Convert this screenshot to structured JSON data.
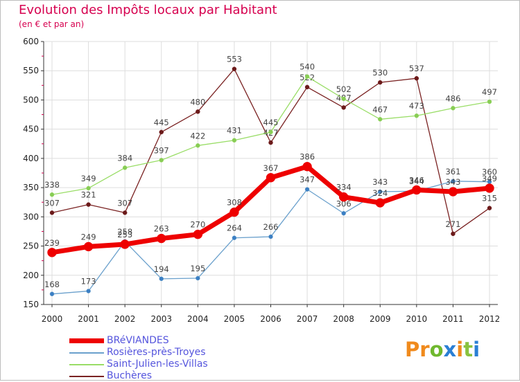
{
  "title": "Evolution des Impôts locaux par Habitant",
  "subtitle": "(en € et par an)",
  "brand": {
    "text": "Proxiti",
    "letter_colors": [
      "#f08a1c",
      "#f08a1c",
      "#6fb82e",
      "#2a7fd4",
      "#f08a1c",
      "#8ac23f",
      "#2a7fd4"
    ]
  },
  "colors": {
    "title": "#d6004f",
    "grid": "#dddddd",
    "legend_text": "#5555dd"
  },
  "chart_data": {
    "type": "line",
    "title": "Evolution des Impôts locaux par Habitant",
    "subtitle": "(en € et par an)",
    "xlabel": "",
    "ylabel": "",
    "ylim": [
      150,
      600
    ],
    "yticks": [
      150,
      200,
      250,
      300,
      350,
      400,
      450,
      500,
      550,
      600
    ],
    "grid": true,
    "legend_position": "bottom-left",
    "x": [
      "2000",
      "2001",
      "2002",
      "2003",
      "2004",
      "2005",
      "2006",
      "2007",
      "2008",
      "2009",
      "2010",
      "2011",
      "2012"
    ],
    "series": [
      {
        "name": "Buchères",
        "color": "#7a2222",
        "values": [
          307,
          321,
          307,
          445,
          480,
          553,
          427,
          522,
          487,
          530,
          537,
          271,
          315
        ],
        "labels": [
          "307",
          "321",
          "307",
          "445",
          "480",
          "553",
          "427",
          "522",
          "487",
          "530",
          "537",
          "271",
          "315"
        ]
      },
      {
        "name": "Saint-Julien-les-Villas",
        "color": "#99dd66",
        "values": [
          338,
          349,
          384,
          397,
          422,
          431,
          445,
          540,
          502,
          467,
          473,
          486,
          497
        ],
        "labels": [
          "338",
          "349",
          "384",
          "397",
          "422",
          "431",
          "445",
          "540",
          "502",
          "467",
          "473",
          "486",
          "497"
        ]
      },
      {
        "name": "Rosières-près-Troyes",
        "color": "#6aa0cc",
        "values": [
          168,
          173,
          258,
          194,
          195,
          264,
          266,
          347,
          306,
          343,
          344,
          361,
          360
        ],
        "labels": [
          "168",
          "173",
          "258",
          "194",
          "195",
          "264",
          "266",
          "347",
          "306",
          "343",
          "344",
          "361",
          "360"
        ]
      },
      {
        "name": "BRéVIANDES",
        "color": "#ee0000",
        "values": [
          239,
          249,
          253,
          263,
          270,
          308,
          367,
          386,
          334,
          324,
          346,
          343,
          349
        ],
        "labels": [
          "239",
          "249",
          "253",
          "263",
          "270",
          "308",
          "367",
          "386",
          "334",
          "324",
          "346",
          "343",
          "349"
        ]
      }
    ],
    "legend": [
      "BRéVIANDES",
      "Rosières-près-Troyes",
      "Saint-Julien-les-Villas",
      "Buchères"
    ]
  }
}
